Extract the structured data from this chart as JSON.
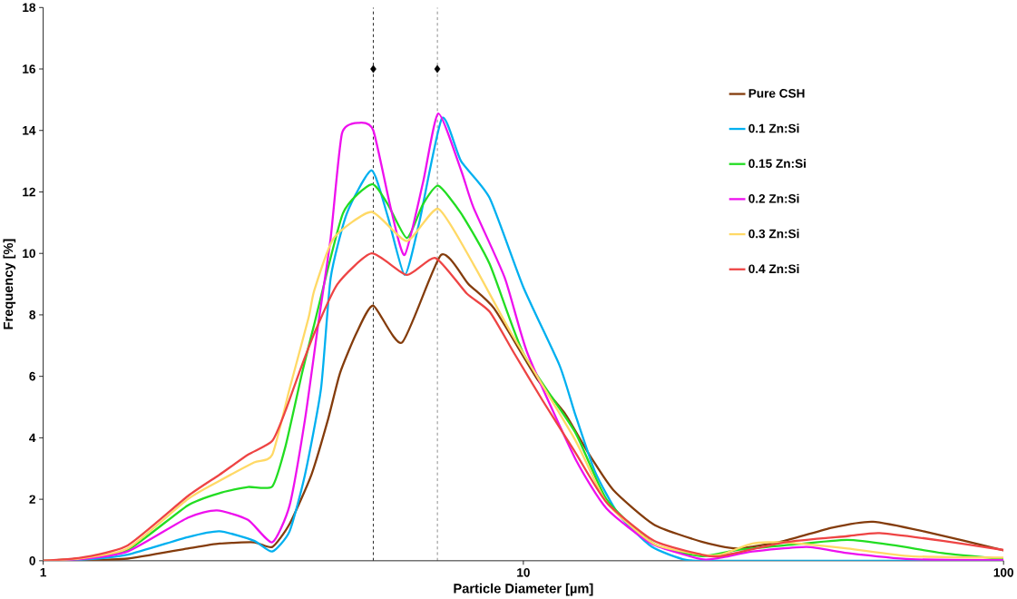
{
  "chart_data": {
    "type": "line",
    "xlabel": "Particle Diameter [µm]",
    "ylabel": "Frequency [%]",
    "log": "x",
    "xlim": [
      1,
      100
    ],
    "xticks": [
      1,
      10,
      100
    ],
    "ylim": [
      0,
      18
    ],
    "yticks": [
      0,
      2,
      4,
      6,
      8,
      10,
      12,
      14,
      16,
      18
    ],
    "grid": false,
    "legend": "right",
    "marker": "none",
    "line_style": "solid",
    "series": [
      {
        "name": "Pure CSH",
        "color": "#843c0c",
        "x": [
          1,
          1.2,
          1.5,
          2.0,
          2.33,
          2.75,
          3.0,
          3.26,
          3.62,
          3.92,
          4.15,
          4.49,
          4.87,
          5.59,
          6.74,
          7.69,
          8.7,
          10.7,
          12.2,
          13.6,
          15.4,
          18.7,
          23.5,
          27.9,
          35,
          44,
          53.5,
          69.4,
          100
        ],
        "values": [
          0,
          0.01,
          0.07,
          0.4,
          0.56,
          0.6,
          0.45,
          1.2,
          2.8,
          4.6,
          6.1,
          7.4,
          8.3,
          7.1,
          9.95,
          9.0,
          8.2,
          5.9,
          4.8,
          3.55,
          2.3,
          1.18,
          0.62,
          0.4,
          0.65,
          1.08,
          1.27,
          0.93,
          0.34
        ]
      },
      {
        "name": "0.1 Zn:Si",
        "color": "#00b0f0",
        "x": [
          1,
          1.2,
          1.5,
          2.0,
          2.33,
          2.75,
          3.0,
          3.26,
          3.51,
          3.79,
          3.97,
          4.29,
          4.83,
          5.22,
          5.66,
          6.07,
          6.77,
          7.42,
          8.51,
          10.0,
          11.9,
          12.8,
          14.1,
          15.8,
          18.5,
          21.8,
          25.8,
          100
        ],
        "values": [
          0,
          0.03,
          0.2,
          0.77,
          0.96,
          0.65,
          0.3,
          0.96,
          2.8,
          5.6,
          9.2,
          11.3,
          12.7,
          11.2,
          9.3,
          11.0,
          14.4,
          13.0,
          11.8,
          8.9,
          6.35,
          4.8,
          2.9,
          1.5,
          0.46,
          0.03,
          0,
          0
        ]
      },
      {
        "name": "0.15 Zn:Si",
        "color": "#22dd22",
        "x": [
          1,
          1.2,
          1.5,
          2.0,
          2.33,
          2.67,
          3.0,
          3.2,
          3.46,
          3.67,
          4.21,
          4.83,
          5.22,
          5.72,
          6.18,
          6.65,
          7.42,
          8.51,
          10.0,
          12.8,
          14.9,
          18.7,
          23.5,
          27.9,
          35,
          47.3,
          59.4,
          74.6,
          100
        ],
        "values": [
          0,
          0.07,
          0.35,
          1.8,
          2.2,
          2.4,
          2.42,
          3.75,
          6.1,
          7.7,
          11.3,
          12.25,
          11.6,
          10.5,
          11.6,
          12.2,
          11.3,
          9.65,
          6.75,
          4.2,
          2.0,
          0.55,
          0.15,
          0.35,
          0.5,
          0.68,
          0.5,
          0.25,
          0.05
        ]
      },
      {
        "name": "0.2 Zn:Si",
        "color": "#ee10ee",
        "x": [
          1,
          1.2,
          1.5,
          2.0,
          2.3,
          2.67,
          3.0,
          3.26,
          3.51,
          3.74,
          3.97,
          4.19,
          4.55,
          4.87,
          5.29,
          5.66,
          6.18,
          6.65,
          7.42,
          7.87,
          9.15,
          10.2,
          12.8,
          14.9,
          18.5,
          23.5,
          25.8,
          30.0,
          38.9,
          47.3,
          64.2,
          100
        ],
        "values": [
          0,
          0.05,
          0.3,
          1.4,
          1.64,
          1.33,
          0.6,
          1.8,
          4.6,
          7.7,
          10.5,
          13.9,
          14.25,
          14.0,
          11.5,
          9.95,
          12.3,
          14.55,
          12.7,
          11.5,
          9.2,
          6.75,
          3.35,
          1.7,
          0.56,
          0.05,
          0.1,
          0.3,
          0.45,
          0.25,
          0.05,
          0.02
        ]
      },
      {
        "name": "0.3 Zn:Si",
        "color": "#ffd966",
        "x": [
          1,
          1.2,
          1.5,
          2.0,
          2.33,
          2.75,
          3.0,
          3.26,
          3.57,
          3.67,
          4.03,
          4.83,
          5.72,
          6.65,
          7.87,
          9.44,
          12.8,
          14.9,
          18.7,
          23.5,
          25.8,
          30.0,
          35,
          47.3,
          64.2,
          100
        ],
        "values": [
          0,
          0.08,
          0.4,
          2.0,
          2.6,
          3.2,
          3.45,
          5.6,
          7.9,
          8.8,
          10.5,
          11.35,
          10.4,
          11.45,
          9.65,
          7.4,
          3.95,
          1.9,
          0.55,
          0.2,
          0.2,
          0.56,
          0.6,
          0.4,
          0.15,
          0.1
        ]
      },
      {
        "name": "0.4 Zn:Si",
        "color": "#ee4444",
        "x": [
          1,
          1.2,
          1.5,
          2.0,
          2.33,
          2.67,
          3.0,
          3.2,
          3.41,
          3.67,
          4.1,
          4.83,
          5.72,
          6.56,
          7.62,
          8.51,
          9.57,
          10.98,
          12.8,
          14.9,
          18.7,
          23.5,
          25.8,
          35,
          47.3,
          55.2,
          74.6,
          100
        ],
        "values": [
          0,
          0.1,
          0.5,
          2.1,
          2.8,
          3.45,
          3.9,
          4.9,
          6.1,
          7.4,
          9.0,
          10.0,
          9.3,
          9.85,
          8.7,
          8.1,
          6.75,
          5.2,
          3.55,
          1.9,
          0.65,
          0.2,
          0.15,
          0.6,
          0.8,
          0.9,
          0.65,
          0.35
        ]
      },
      {
        "type": "scatter",
        "color": "#000000",
        "marker": "diamond",
        "x": [
          4.87,
          6.62
        ],
        "values": [
          16,
          16
        ]
      }
    ],
    "ref_lines": [
      {
        "axis": "x",
        "value": 4.87,
        "color": "#000000",
        "line_style": "dashed"
      },
      {
        "axis": "x",
        "value": 6.62,
        "color": "#000000",
        "line_style": "dashed"
      }
    ]
  }
}
